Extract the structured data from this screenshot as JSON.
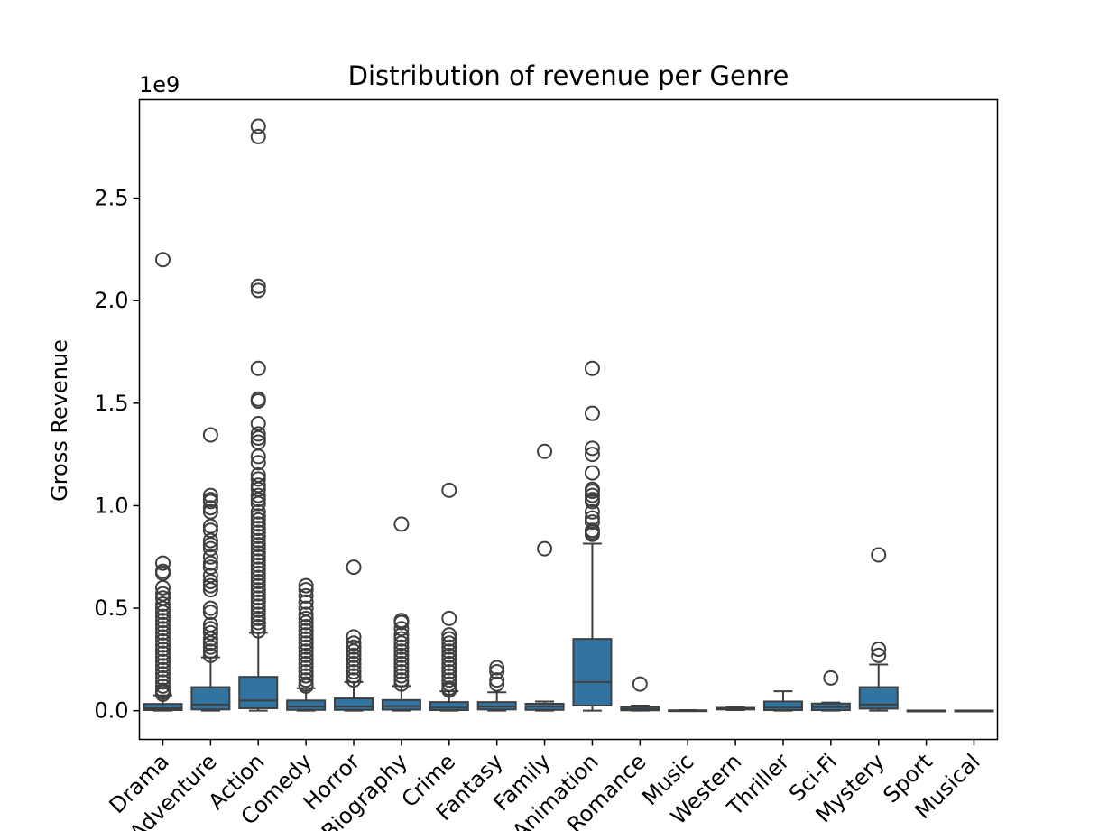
{
  "chart_data": {
    "type": "box",
    "title": "Distribution of revenue per Genre",
    "xlabel": "",
    "ylabel": "Gross Revenue",
    "y_offset_label": "1e9",
    "y_scale": 1000000000,
    "ylim": [
      -0.14,
      2.98
    ],
    "yticks": [
      0.0,
      0.5,
      1.0,
      1.5,
      2.0,
      2.5
    ],
    "ytick_labels": [
      "0.0",
      "0.5",
      "1.0",
      "1.5",
      "2.0",
      "2.5"
    ],
    "grid": false,
    "box_color": "#3274a1",
    "line_color": "#3f3f3f",
    "categories": [
      "Drama",
      "Adventure",
      "Action",
      "Comedy",
      "Horror",
      "Biography",
      "Crime",
      "Fantasy",
      "Family",
      "Animation",
      "Romance",
      "Music",
      "Western",
      "Thriller",
      "Sci-Fi",
      "Mystery",
      "Sport",
      "Musical"
    ],
    "boxes": [
      {
        "genre": "Drama",
        "whisker_low": 0.0,
        "q1": 0.003,
        "median": 0.012,
        "q3": 0.033,
        "whisker_high": 0.075,
        "outliers": [
          2.2,
          0.72,
          0.68,
          0.67,
          0.6,
          0.57,
          0.55,
          0.52,
          0.5,
          0.48,
          0.46,
          0.44,
          0.42,
          0.4,
          0.38,
          0.36,
          0.34,
          0.32,
          0.3,
          0.28,
          0.26,
          0.24,
          0.22,
          0.2,
          0.18,
          0.16,
          0.14,
          0.12,
          0.1,
          0.09,
          0.08
        ]
      },
      {
        "genre": "Adventure",
        "whisker_low": 0.0,
        "q1": 0.006,
        "median": 0.03,
        "q3": 0.115,
        "whisker_high": 0.26,
        "outliers": [
          1.345,
          1.05,
          1.03,
          1.02,
          0.99,
          0.97,
          0.9,
          0.88,
          0.83,
          0.81,
          0.79,
          0.75,
          0.72,
          0.7,
          0.66,
          0.63,
          0.61,
          0.59,
          0.5,
          0.48,
          0.42,
          0.4,
          0.38,
          0.35,
          0.33,
          0.31,
          0.29,
          0.27
        ]
      },
      {
        "genre": "Action",
        "whisker_low": 0.0,
        "q1": 0.012,
        "median": 0.05,
        "q3": 0.165,
        "whisker_high": 0.38,
        "outliers": [
          2.85,
          2.8,
          2.07,
          2.05,
          1.67,
          1.52,
          1.51,
          1.4,
          1.35,
          1.33,
          1.31,
          1.24,
          1.21,
          1.15,
          1.13,
          1.1,
          1.08,
          1.05,
          1.03,
          1.01,
          0.97,
          0.95,
          0.93,
          0.91,
          0.89,
          0.87,
          0.85,
          0.83,
          0.81,
          0.79,
          0.77,
          0.75,
          0.73,
          0.71,
          0.69,
          0.67,
          0.65,
          0.63,
          0.61,
          0.59,
          0.57,
          0.55,
          0.53,
          0.51,
          0.49,
          0.47,
          0.45,
          0.43,
          0.41,
          0.39
        ]
      },
      {
        "genre": "Comedy",
        "whisker_low": 0.0,
        "q1": 0.004,
        "median": 0.02,
        "q3": 0.05,
        "whisker_high": 0.11,
        "outliers": [
          0.61,
          0.59,
          0.56,
          0.53,
          0.5,
          0.47,
          0.45,
          0.43,
          0.41,
          0.39,
          0.37,
          0.35,
          0.33,
          0.31,
          0.29,
          0.27,
          0.25,
          0.23,
          0.21,
          0.19,
          0.17,
          0.15,
          0.13,
          0.12
        ]
      },
      {
        "genre": "Horror",
        "whisker_low": 0.0,
        "q1": 0.004,
        "median": 0.02,
        "q3": 0.06,
        "whisker_high": 0.14,
        "outliers": [
          0.7,
          0.36,
          0.33,
          0.31,
          0.29,
          0.27,
          0.25,
          0.23,
          0.21,
          0.19,
          0.17,
          0.15
        ]
      },
      {
        "genre": "Biography",
        "whisker_low": 0.0,
        "q1": 0.005,
        "median": 0.022,
        "q3": 0.052,
        "whisker_high": 0.12,
        "outliers": [
          0.91,
          0.44,
          0.43,
          0.4,
          0.37,
          0.35,
          0.33,
          0.31,
          0.29,
          0.27,
          0.25,
          0.23,
          0.21,
          0.19,
          0.17,
          0.15,
          0.13
        ]
      },
      {
        "genre": "Crime",
        "whisker_low": 0.0,
        "q1": 0.003,
        "median": 0.015,
        "q3": 0.042,
        "whisker_high": 0.095,
        "outliers": [
          1.075,
          0.45,
          0.37,
          0.35,
          0.33,
          0.31,
          0.29,
          0.27,
          0.25,
          0.23,
          0.21,
          0.19,
          0.17,
          0.15,
          0.13,
          0.11,
          0.1
        ]
      },
      {
        "genre": "Fantasy",
        "whisker_low": 0.0,
        "q1": 0.006,
        "median": 0.02,
        "q3": 0.042,
        "whisker_high": 0.09,
        "outliers": [
          0.21,
          0.19,
          0.15,
          0.13
        ]
      },
      {
        "genre": "Family",
        "whisker_low": 0.0,
        "q1": 0.004,
        "median": 0.02,
        "q3": 0.034,
        "whisker_high": 0.045,
        "outliers": [
          1.265,
          0.79
        ]
      },
      {
        "genre": "Animation",
        "whisker_low": 0.0,
        "q1": 0.025,
        "median": 0.14,
        "q3": 0.35,
        "whisker_high": 0.815,
        "outliers": [
          1.67,
          1.45,
          1.28,
          1.25,
          1.16,
          1.08,
          1.07,
          1.05,
          1.03,
          1.02,
          0.97,
          0.94,
          0.92,
          0.88,
          0.87,
          0.86
        ]
      },
      {
        "genre": "Romance",
        "whisker_low": 0.0,
        "q1": 0.002,
        "median": 0.008,
        "q3": 0.018,
        "whisker_high": 0.025,
        "outliers": [
          0.13
        ]
      },
      {
        "genre": "Music",
        "whisker_low": 0.0,
        "q1": 0.0,
        "median": 0.001,
        "q3": 0.002,
        "whisker_high": 0.003,
        "outliers": []
      },
      {
        "genre": "Western",
        "whisker_low": 0.003,
        "q1": 0.006,
        "median": 0.01,
        "q3": 0.014,
        "whisker_high": 0.017,
        "outliers": []
      },
      {
        "genre": "Thriller",
        "whisker_low": 0.0,
        "q1": 0.003,
        "median": 0.015,
        "q3": 0.045,
        "whisker_high": 0.095,
        "outliers": []
      },
      {
        "genre": "Sci-Fi",
        "whisker_low": 0.0,
        "q1": 0.003,
        "median": 0.018,
        "q3": 0.035,
        "whisker_high": 0.04,
        "outliers": [
          0.16
        ]
      },
      {
        "genre": "Mystery",
        "whisker_low": 0.0,
        "q1": 0.01,
        "median": 0.03,
        "q3": 0.115,
        "whisker_high": 0.225,
        "outliers": [
          0.76,
          0.3,
          0.27
        ]
      },
      {
        "genre": "Sport",
        "whisker_low": 0.0,
        "q1": 0.0,
        "median": 0.0,
        "q3": 0.001,
        "whisker_high": 0.001,
        "outliers": []
      },
      {
        "genre": "Musical",
        "whisker_low": 0.0,
        "q1": 0.0,
        "median": 0.0,
        "q3": 0.001,
        "whisker_high": 0.001,
        "outliers": []
      }
    ]
  }
}
